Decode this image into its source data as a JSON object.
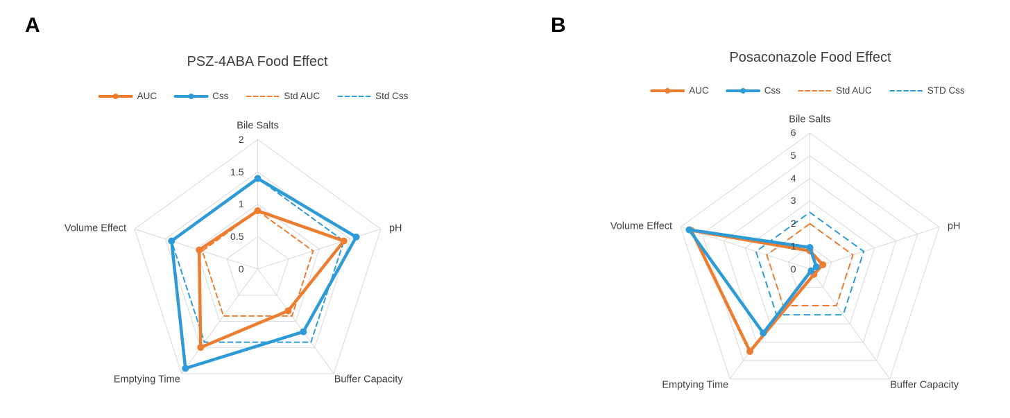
{
  "figure": {
    "background": "#FFFFFF",
    "colors": {
      "auc_orange": "#ED7D31",
      "css_blue": "#2E9BD6",
      "grid_gray": "#D9D9D9",
      "label_text": "#404040",
      "panel_letter": "#000000"
    }
  },
  "panels": [
    {
      "panel_label": "A",
      "title": "PSZ-4ABA Food Effect",
      "legend": [
        {
          "label": "AUC",
          "style": "solid",
          "color": "#ED7D31",
          "marker": true
        },
        {
          "label": "Css",
          "style": "solid",
          "color": "#2E9BD6",
          "marker": true
        },
        {
          "label": "Std AUC",
          "style": "dashed",
          "color": "#ED7D31",
          "marker": false
        },
        {
          "label": "Std Css",
          "style": "dashed",
          "color": "#2E9BD6",
          "marker": false
        }
      ],
      "chart_data": {
        "type": "radar",
        "title": "PSZ-4ABA Food Effect",
        "categories": [
          "Bile Salts",
          "pH",
          "Buffer Capacity",
          "Emptying Time",
          "Volume Effect"
        ],
        "series": [
          {
            "name": "AUC",
            "style": "solid",
            "color": "#ED7D31",
            "markers": true,
            "values": [
              0.9,
              1.4,
              0.8,
              1.5,
              0.95
            ]
          },
          {
            "name": "Css",
            "style": "solid",
            "color": "#2E9BD6",
            "markers": true,
            "values": [
              1.4,
              1.6,
              1.2,
              1.9,
              1.4
            ]
          },
          {
            "name": "Std AUC",
            "style": "dashed",
            "color": "#ED7D31",
            "markers": false,
            "values": [
              0.9,
              0.9,
              0.9,
              0.9,
              0.9
            ]
          },
          {
            "name": "Std Css",
            "style": "dashed",
            "color": "#2E9BD6",
            "markers": false,
            "values": [
              1.4,
              1.4,
              1.4,
              1.4,
              1.4
            ]
          }
        ],
        "rlim": [
          0,
          2
        ],
        "ticks": [
          0,
          0.5,
          1,
          1.5,
          2
        ],
        "tick_labels": [
          "0",
          "0.5",
          "1",
          "1.5",
          "2"
        ],
        "grid": "pentagon-rings",
        "legend_position": "top"
      }
    },
    {
      "panel_label": "B",
      "title": "Posaconazole Food Effect",
      "legend": [
        {
          "label": "AUC",
          "style": "solid",
          "color": "#ED7D31",
          "marker": true
        },
        {
          "label": "Css",
          "style": "solid",
          "color": "#2E9BD6",
          "marker": true
        },
        {
          "label": "Std AUC",
          "style": "dashed",
          "color": "#ED7D31",
          "marker": false
        },
        {
          "label": "STD Css",
          "style": "dashed",
          "color": "#2E9BD6",
          "marker": false
        }
      ],
      "chart_data": {
        "type": "radar",
        "title": "Posaconazole Food Effect",
        "categories": [
          "Bile Salts",
          "pH",
          "Buffer Capacity",
          "Emptying Time",
          "Volume Effect"
        ],
        "series": [
          {
            "name": "AUC",
            "style": "solid",
            "color": "#ED7D31",
            "markers": true,
            "values": [
              0.8,
              0.6,
              0.3,
              4.5,
              5.5
            ]
          },
          {
            "name": "Css",
            "style": "solid",
            "color": "#2E9BD6",
            "markers": true,
            "values": [
              0.95,
              0.3,
              0.1,
              3.5,
              5.6
            ]
          },
          {
            "name": "Std AUC",
            "style": "dashed",
            "color": "#ED7D31",
            "markers": false,
            "values": [
              2,
              2,
              2,
              2,
              2
            ]
          },
          {
            "name": "STD Css",
            "style": "dashed",
            "color": "#2E9BD6",
            "markers": false,
            "values": [
              2.5,
              2.5,
              2.5,
              2.5,
              2.5
            ]
          }
        ],
        "rlim": [
          0,
          6
        ],
        "ticks": [
          0,
          1,
          2,
          3,
          4,
          5,
          6
        ],
        "tick_labels": [
          "0",
          "1",
          "2",
          "3",
          "4",
          "5",
          "6"
        ],
        "grid": "pentagon-rings",
        "legend_position": "top"
      }
    }
  ]
}
